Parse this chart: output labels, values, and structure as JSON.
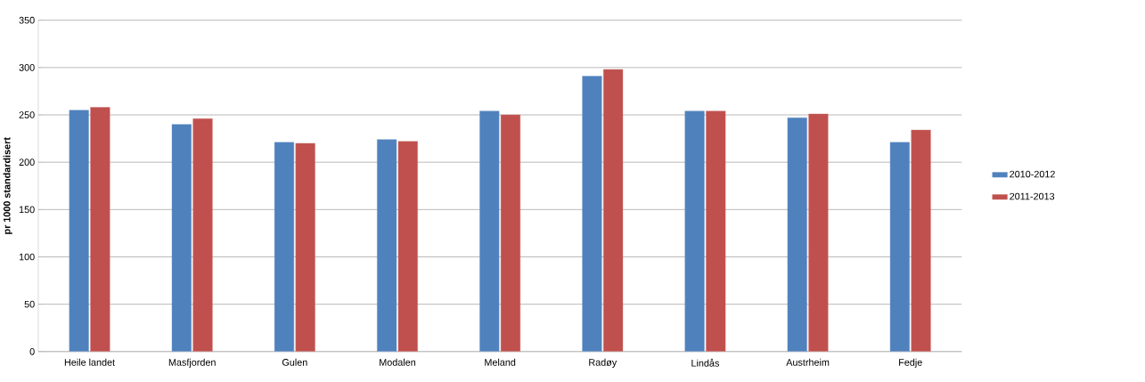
{
  "chart_data": {
    "type": "bar",
    "ylabel": "pr 1000 standardisert",
    "categories": [
      "Heile landet",
      "Masfjorden",
      "Gulen",
      "Modalen",
      "Meland",
      "Radøy",
      "Lindås",
      "Austrheim",
      "Fedje"
    ],
    "series": [
      {
        "name": "2010-2012",
        "color": "#4f81bd",
        "values": [
          255,
          240,
          221,
          224,
          254,
          291,
          254,
          247,
          221
        ]
      },
      {
        "name": "2011-2013",
        "color": "#c0504d",
        "values": [
          258,
          246,
          220,
          222,
          250,
          298,
          254,
          251,
          234
        ]
      }
    ],
    "ylim": [
      0,
      350
    ],
    "yticks": [
      0,
      50,
      100,
      150,
      200,
      250,
      300,
      350
    ],
    "grid": "y",
    "legend": "right"
  }
}
